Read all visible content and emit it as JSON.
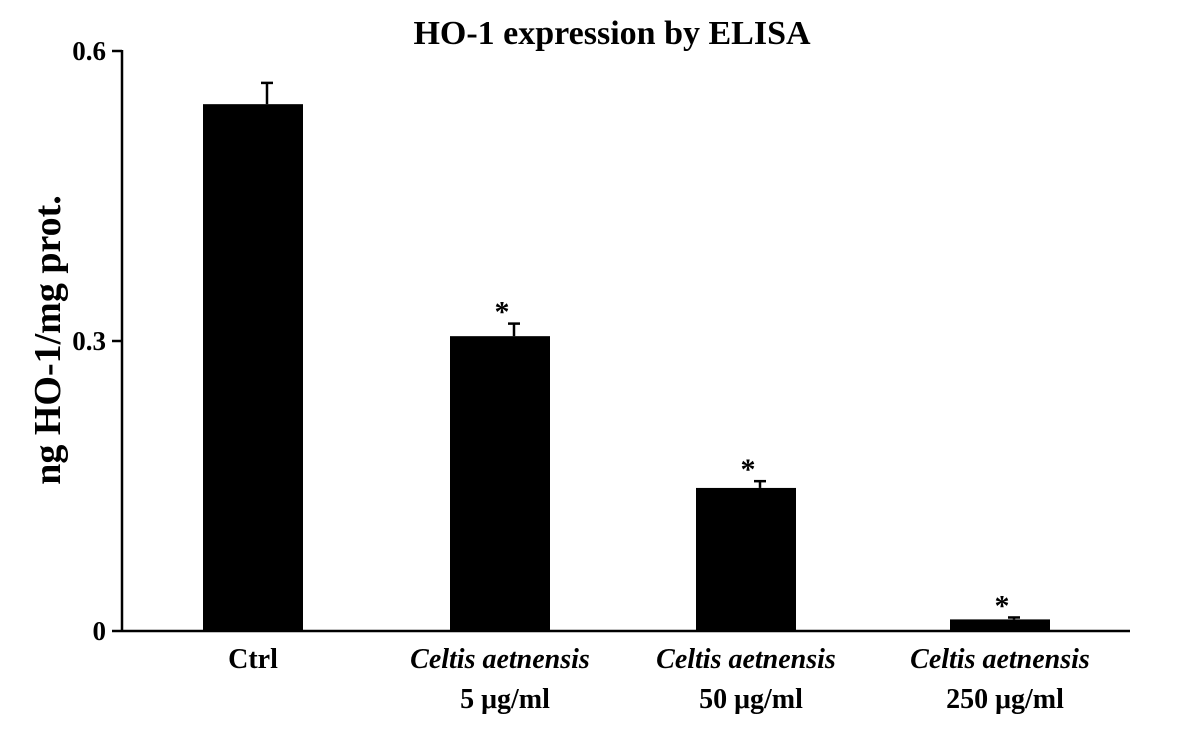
{
  "chart_data": {
    "type": "bar",
    "title": "HO-1 expression by ELISA",
    "xlabel": "",
    "ylabel": "ng HO-1/mg prot.",
    "ylim": [
      0,
      0.6
    ],
    "yticks": [
      {
        "value": 0,
        "label": "0"
      },
      {
        "value": 0.3,
        "label": "0.3"
      },
      {
        "value": 0.6,
        "label": "0.6"
      }
    ],
    "grid": false,
    "legend": "none",
    "bar_color": "#000000",
    "categories": [
      {
        "line1": "Ctrl",
        "line1_italic": false,
        "line2": ""
      },
      {
        "line1": "Celtis aetnensis",
        "line1_italic": true,
        "line2": "5 μg/ml"
      },
      {
        "line1": "Celtis aetnensis",
        "line1_italic": true,
        "line2": "50 μg/ml"
      },
      {
        "line1": "Celtis aetnensis",
        "line1_italic": true,
        "line2": "250 μg/ml"
      }
    ],
    "values": [
      0.545,
      0.305,
      0.148,
      0.012
    ],
    "errors": [
      0.022,
      0.013,
      0.007,
      0.002
    ],
    "annotations": [
      "",
      "*",
      "*",
      "*"
    ]
  }
}
